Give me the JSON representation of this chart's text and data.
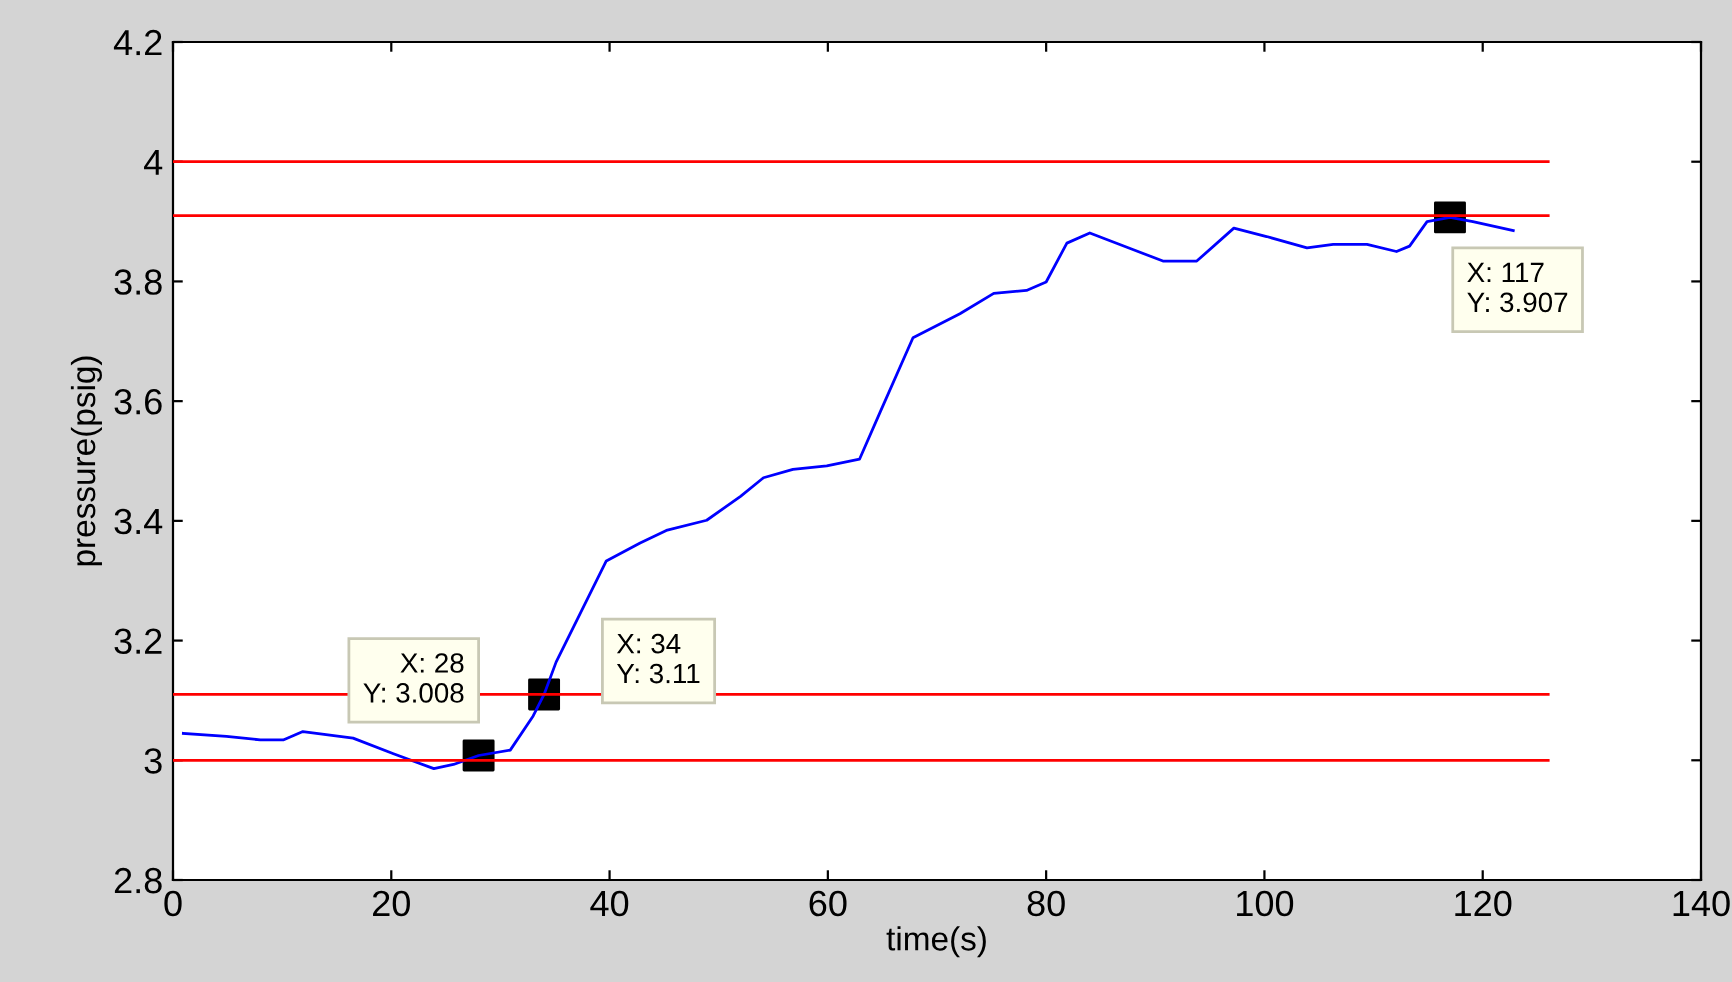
{
  "chart_data": {
    "type": "line",
    "xlabel": "time(s)",
    "ylabel": "pressure(psig)",
    "xlim": [
      0,
      140
    ],
    "ylim": [
      2.8,
      4.2
    ],
    "xticks": [
      0,
      20,
      40,
      60,
      80,
      100,
      120,
      140
    ],
    "yticks": [
      2.8,
      3,
      3.2,
      3.4,
      3.6,
      3.8,
      4,
      4.2
    ],
    "grid": false,
    "legend": false,
    "series": [
      {
        "color": "#0000ff",
        "x": [
          0.95,
          4.9,
          8.0,
          10.1,
          11.9,
          16.5,
          20.2,
          23.9,
          25.7,
          28,
          30.9,
          33,
          34,
          35.1,
          39.7,
          42.8,
          45.2,
          48.9,
          52,
          54.1,
          56.8,
          59.9,
          62.9,
          64.8,
          67.8,
          72.1,
          75.2,
          78.2,
          80.0,
          81.9,
          84.0,
          88.0,
          90.7,
          93.8,
          97.2,
          100.2,
          103.9,
          106.3,
          109.4,
          112.1,
          113.3,
          114.9,
          117,
          119.1,
          122.8
        ],
        "values": [
          3.045,
          3.04,
          3.034,
          3.034,
          3.048,
          3.037,
          3.011,
          2.986,
          2.993,
          3.008,
          3.017,
          3.074,
          3.11,
          3.164,
          3.333,
          3.363,
          3.384,
          3.401,
          3.441,
          3.472,
          3.486,
          3.492,
          3.503,
          3.582,
          3.706,
          3.746,
          3.78,
          3.785,
          3.799,
          3.864,
          3.881,
          3.853,
          3.834,
          3.834,
          3.889,
          3.875,
          3.856,
          3.862,
          3.862,
          3.85,
          3.859,
          3.9,
          3.907,
          3.9,
          3.885
        ]
      },
      {
        "color": "#ff0000",
        "x": [
          0,
          126
        ],
        "values": [
          4.0,
          4.0
        ]
      },
      {
        "color": "#ff0000",
        "x": [
          0,
          126
        ],
        "values": [
          3.91,
          3.91
        ]
      },
      {
        "color": "#ff0000",
        "x": [
          0,
          126
        ],
        "values": [
          3.11,
          3.11
        ]
      },
      {
        "color": "#ff0000",
        "x": [
          0,
          126
        ],
        "values": [
          3.0,
          3.0
        ]
      },
      {
        "type": "scatter",
        "marker": "square",
        "color": "#000000",
        "x": [
          28,
          34,
          117
        ],
        "values": [
          3.008,
          3.11,
          3.907
        ]
      }
    ],
    "annotations": [
      {
        "text": "X: 28\nY: 3.008",
        "x": 28,
        "y": 3.008
      },
      {
        "text": "X: 34\nY: 3.11",
        "x": 34,
        "y": 3.11
      },
      {
        "text": "X: 117\nY: 3.907",
        "x": 117,
        "y": 3.907
      }
    ]
  }
}
